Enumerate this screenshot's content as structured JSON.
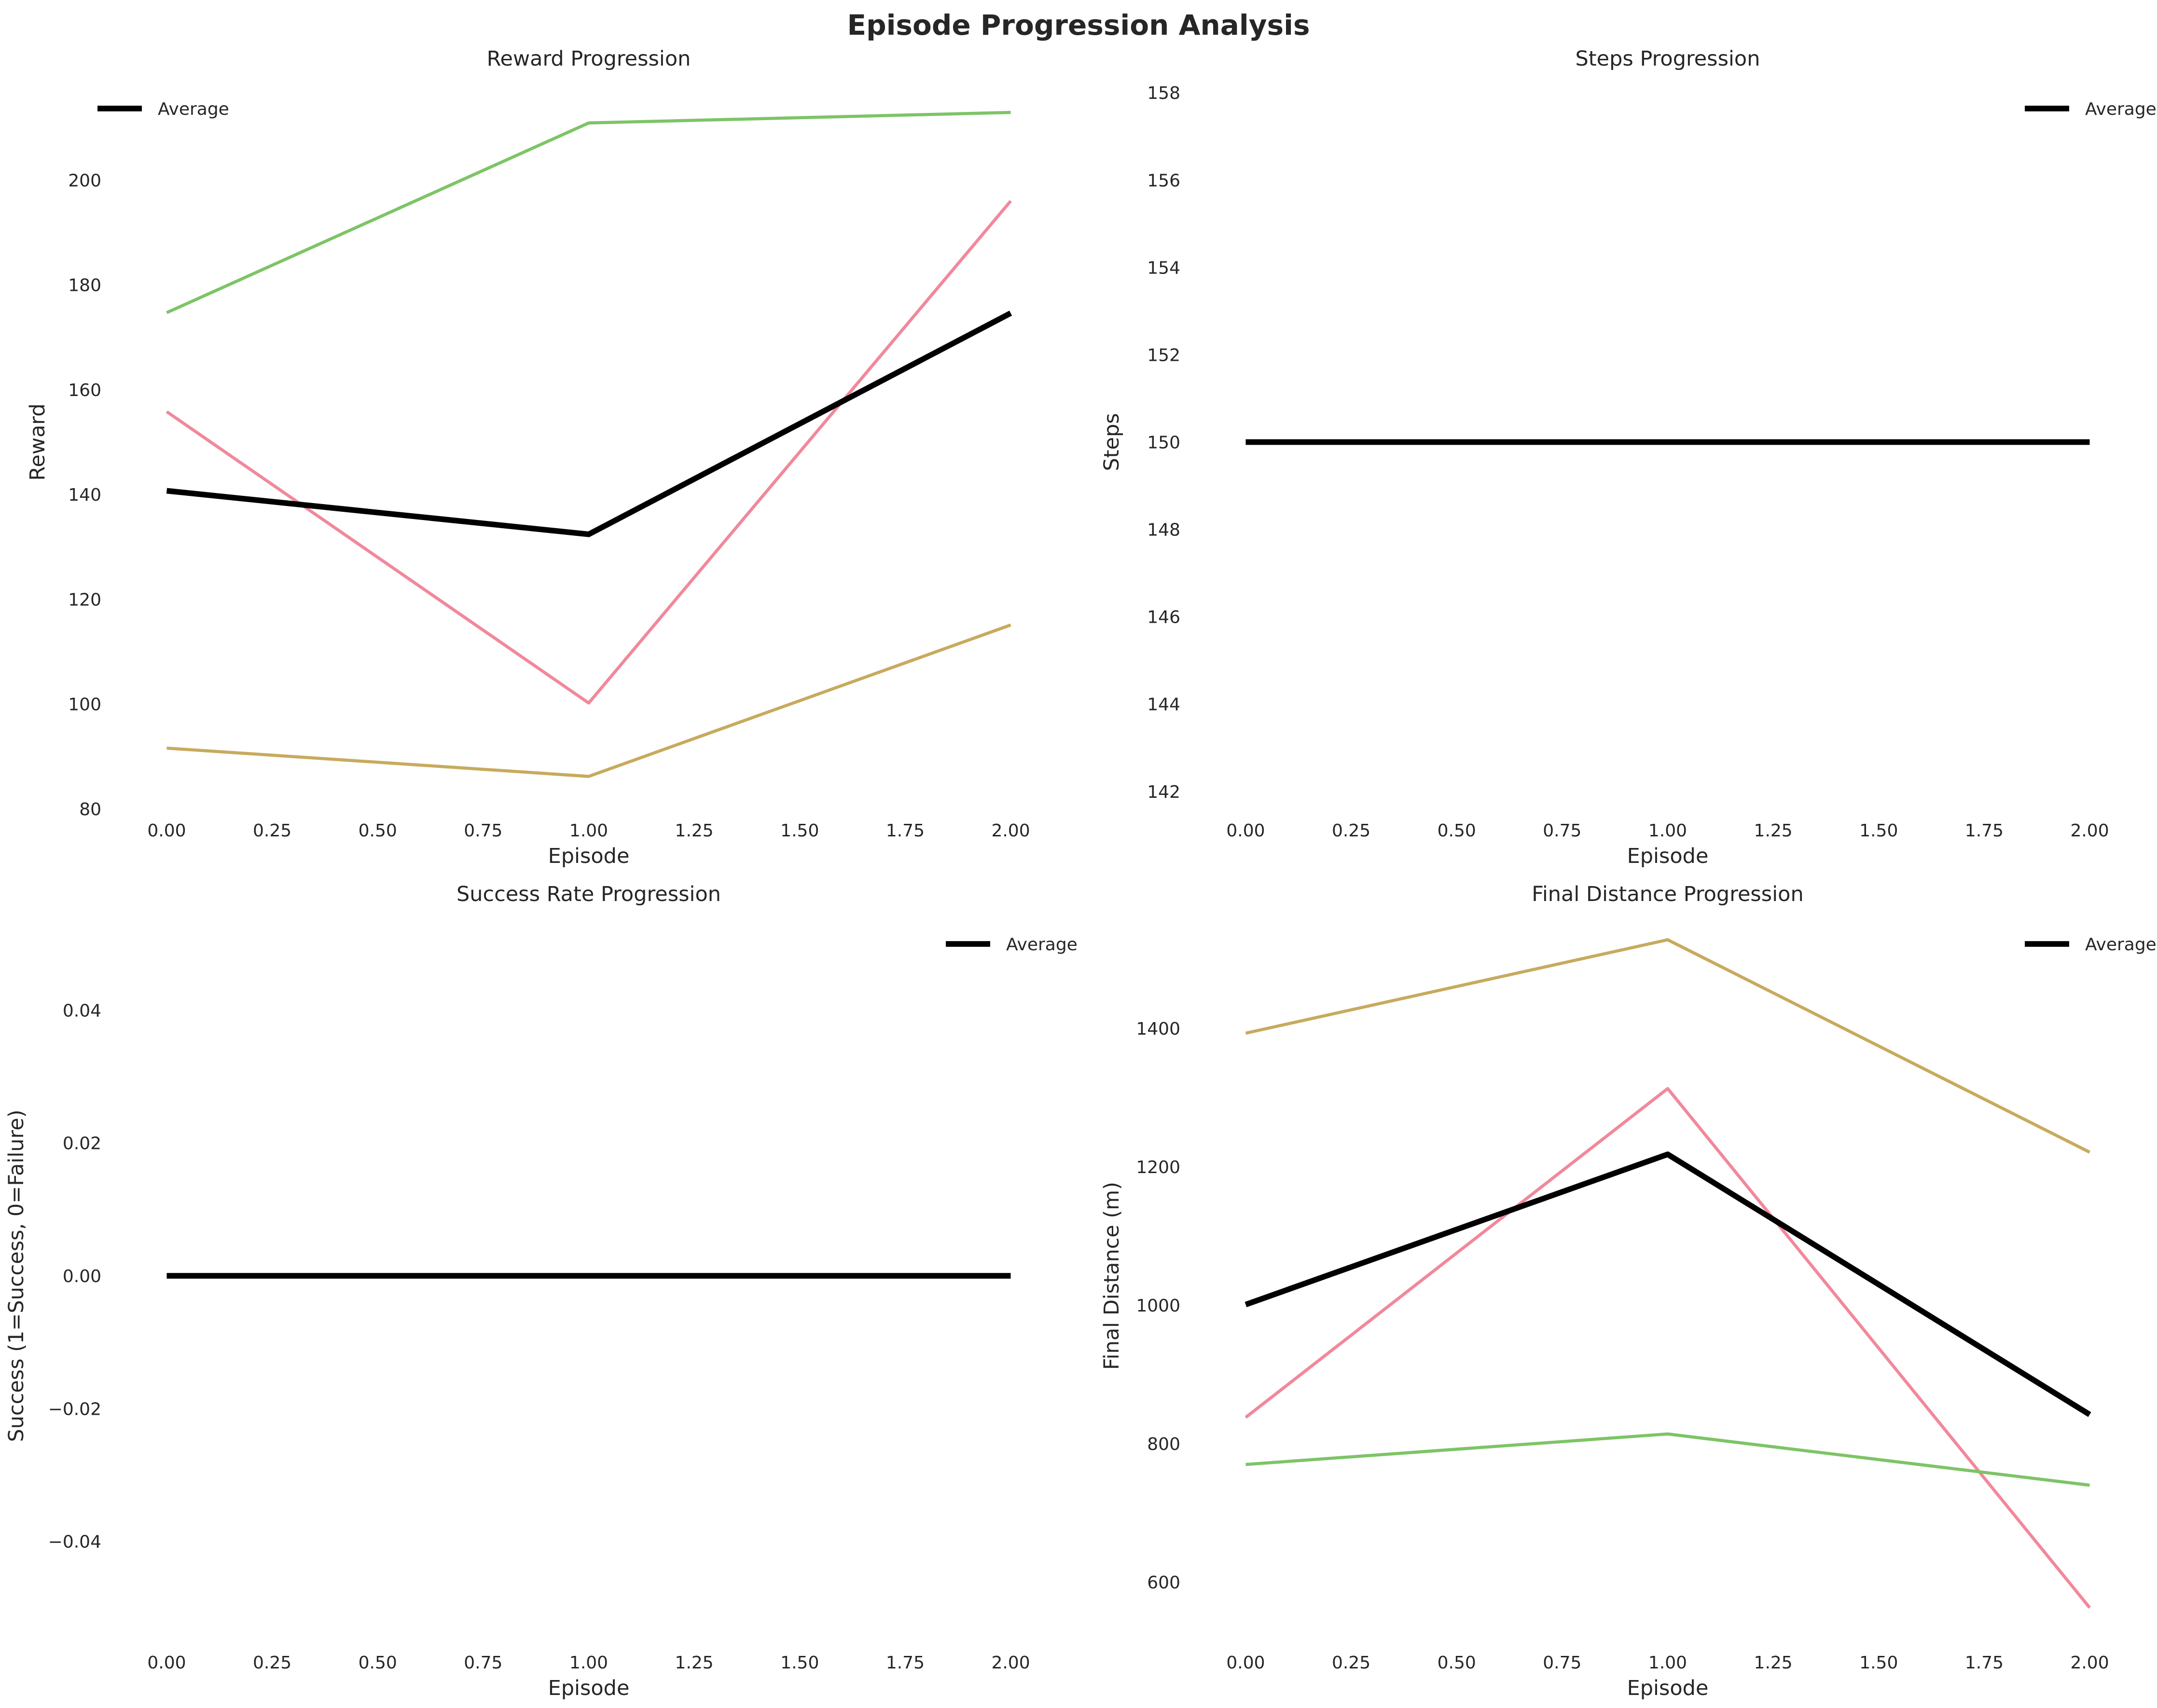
{
  "figure_title": "Episode Progression Analysis",
  "chart_data": [
    {
      "type": "line",
      "title": "Reward Progression",
      "xlabel": "Episode",
      "ylabel": "Reward",
      "x": [
        0,
        1,
        2
      ],
      "xlim": [
        -0.1,
        2.1
      ],
      "ylim": [
        80,
        220
      ],
      "xticks": [
        0,
        0.25,
        0.5,
        0.75,
        1,
        1.25,
        1.5,
        1.75,
        2
      ],
      "xtick_labels": [
        "0.00",
        "0.25",
        "0.50",
        "0.75",
        "1.00",
        "1.25",
        "1.50",
        "1.75",
        "2.00"
      ],
      "yticks": [
        80,
        100,
        120,
        140,
        160,
        180,
        200
      ],
      "ytick_labels": [
        "80",
        "100",
        "120",
        "140",
        "160",
        "180",
        "200"
      ],
      "grid": false,
      "legend": {
        "position": "top-left",
        "entries": [
          "Average"
        ]
      },
      "series": [
        {
          "values": [
            155.8,
            100.2,
            196.0
          ],
          "color": "#f1889b",
          "width": 2.5
        },
        {
          "values": [
            91.6,
            86.2,
            115.1
          ],
          "color": "#c8aa5e",
          "width": 2.5
        },
        {
          "values": [
            174.7,
            210.9,
            212.9
          ],
          "color": "#7dc466",
          "width": 2.5
        },
        {
          "name": "Average",
          "values": [
            140.7,
            132.4,
            174.6
          ],
          "color": "#000000",
          "width": 4.5
        }
      ]
    },
    {
      "type": "line",
      "title": "Steps Progression",
      "xlabel": "Episode",
      "ylabel": "Steps",
      "x": [
        0,
        1,
        2
      ],
      "xlim": [
        -0.1,
        2.1
      ],
      "ylim": [
        141.6,
        158.4
      ],
      "xticks": [
        0,
        0.25,
        0.5,
        0.75,
        1,
        1.25,
        1.5,
        1.75,
        2
      ],
      "xtick_labels": [
        "0.00",
        "0.25",
        "0.50",
        "0.75",
        "1.00",
        "1.25",
        "1.50",
        "1.75",
        "2.00"
      ],
      "yticks": [
        142,
        144,
        146,
        148,
        150,
        152,
        154,
        156,
        158
      ],
      "ytick_labels": [
        "142",
        "144",
        "146",
        "148",
        "150",
        "152",
        "154",
        "156",
        "158"
      ],
      "grid": false,
      "legend": {
        "position": "top-right",
        "entries": [
          "Average"
        ]
      },
      "series": [
        {
          "name": "Average",
          "values": [
            150,
            150,
            150
          ],
          "color": "#000000",
          "width": 4.5
        }
      ]
    },
    {
      "type": "line",
      "title": "Success Rate Progression",
      "xlabel": "Episode",
      "ylabel": "Success (1=Success, 0=Failure)",
      "x": [
        0,
        1,
        2
      ],
      "xlim": [
        -0.1,
        2.1
      ],
      "ylim": [
        -0.055,
        0.055
      ],
      "xticks": [
        0,
        0.25,
        0.5,
        0.75,
        1,
        1.25,
        1.5,
        1.75,
        2
      ],
      "xtick_labels": [
        "0.00",
        "0.25",
        "0.50",
        "0.75",
        "1.00",
        "1.25",
        "1.50",
        "1.75",
        "2.00"
      ],
      "yticks": [
        -0.04,
        -0.02,
        0,
        0.02,
        0.04
      ],
      "ytick_labels": [
        "−0.04",
        "−0.02",
        "0.00",
        "0.02",
        "0.04"
      ],
      "grid": false,
      "legend": {
        "position": "top-right",
        "entries": [
          "Average"
        ]
      },
      "series": [
        {
          "name": "Average",
          "values": [
            0,
            0,
            0
          ],
          "color": "#000000",
          "width": 4.5
        }
      ]
    },
    {
      "type": "line",
      "title": "Final Distance Progression",
      "xlabel": "Episode",
      "ylabel": "Final Distance (m)",
      "x": [
        0,
        1,
        2
      ],
      "xlim": [
        -0.1,
        2.1
      ],
      "ylim": [
        515,
        1570
      ],
      "xticks": [
        0,
        0.25,
        0.5,
        0.75,
        1,
        1.25,
        1.5,
        1.75,
        2
      ],
      "xtick_labels": [
        "0.00",
        "0.25",
        "0.50",
        "0.75",
        "1.00",
        "1.25",
        "1.50",
        "1.75",
        "2.00"
      ],
      "yticks": [
        600,
        800,
        1000,
        1200,
        1400
      ],
      "ytick_labels": [
        "600",
        "800",
        "1000",
        "1200",
        "1400"
      ],
      "grid": false,
      "legend": {
        "position": "top-right",
        "entries": [
          "Average"
        ]
      },
      "series": [
        {
          "values": [
            838,
            1313,
            563
          ],
          "color": "#f1889b",
          "width": 2.5
        },
        {
          "values": [
            1393,
            1528,
            1221
          ],
          "color": "#c8aa5e",
          "width": 2.5
        },
        {
          "values": [
            770,
            814,
            740
          ],
          "color": "#7dc466",
          "width": 2.5
        },
        {
          "name": "Average",
          "values": [
            1001,
            1218,
            842
          ],
          "color": "#000000",
          "width": 4.5
        }
      ]
    }
  ]
}
